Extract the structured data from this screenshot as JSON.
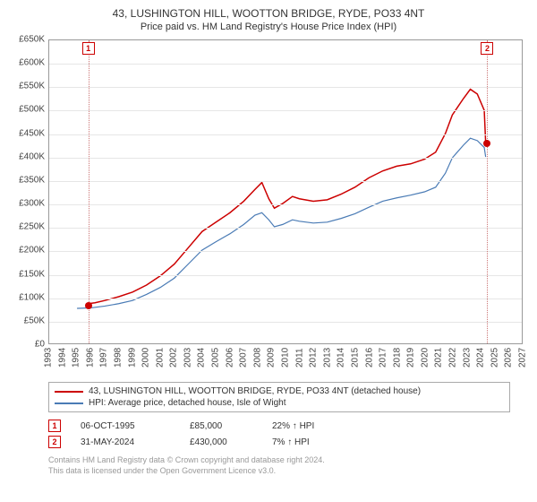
{
  "titles": {
    "main": "43, LUSHINGTON HILL, WOOTTON BRIDGE, RYDE, PO33 4NT",
    "sub": "Price paid vs. HM Land Registry's House Price Index (HPI)"
  },
  "chart": {
    "type": "line",
    "background": "#ffffff",
    "grid_color": "#e6e6e6",
    "border_color": "#999999",
    "x_axis": {
      "years": [
        1993,
        1994,
        1995,
        1996,
        1997,
        1998,
        1999,
        2000,
        2001,
        2002,
        2003,
        2004,
        2005,
        2006,
        2007,
        2008,
        2009,
        2010,
        2011,
        2012,
        2013,
        2014,
        2015,
        2016,
        2017,
        2018,
        2019,
        2020,
        2021,
        2022,
        2023,
        2024,
        2025,
        2026,
        2027
      ],
      "min": 1993,
      "max": 2027,
      "label_fontsize": 10
    },
    "y_axis": {
      "tick_labels": [
        "£0",
        "£50K",
        "£100K",
        "£150K",
        "£200K",
        "£250K",
        "£300K",
        "£350K",
        "£400K",
        "£450K",
        "£500K",
        "£550K",
        "£600K",
        "£650K"
      ],
      "tick_values": [
        0,
        50000,
        100000,
        150000,
        200000,
        250000,
        300000,
        350000,
        400000,
        450000,
        500000,
        550000,
        600000,
        650000
      ],
      "min": 0,
      "max": 650000,
      "label_fontsize": 10
    },
    "series": [
      {
        "name": "43, LUSHINGTON HILL, WOOTTON BRIDGE, RYDE, PO33 4NT (detached house)",
        "color": "#cc0000",
        "line_width": 1.5,
        "data": [
          [
            1995.8,
            85000
          ],
          [
            1996.3,
            87000
          ],
          [
            1997,
            92000
          ],
          [
            1998,
            100000
          ],
          [
            1999,
            110000
          ],
          [
            2000,
            125000
          ],
          [
            2001,
            145000
          ],
          [
            2002,
            170000
          ],
          [
            2003,
            205000
          ],
          [
            2004,
            240000
          ],
          [
            2005,
            260000
          ],
          [
            2006,
            280000
          ],
          [
            2007,
            305000
          ],
          [
            2007.8,
            330000
          ],
          [
            2008.3,
            345000
          ],
          [
            2008.8,
            310000
          ],
          [
            2009.2,
            290000
          ],
          [
            2009.8,
            300000
          ],
          [
            2010.5,
            315000
          ],
          [
            2011,
            310000
          ],
          [
            2012,
            305000
          ],
          [
            2013,
            308000
          ],
          [
            2014,
            320000
          ],
          [
            2015,
            335000
          ],
          [
            2016,
            355000
          ],
          [
            2017,
            370000
          ],
          [
            2018,
            380000
          ],
          [
            2019,
            385000
          ],
          [
            2020,
            395000
          ],
          [
            2020.8,
            410000
          ],
          [
            2021.5,
            450000
          ],
          [
            2022,
            490000
          ],
          [
            2022.8,
            525000
          ],
          [
            2023.3,
            545000
          ],
          [
            2023.8,
            535000
          ],
          [
            2024.3,
            500000
          ],
          [
            2024.4,
            430000
          ]
        ]
      },
      {
        "name": "HPI: Average price, detached house, Isle of Wight",
        "color": "#4a7bb5",
        "line_width": 1.2,
        "data": [
          [
            1995,
            75000
          ],
          [
            1996,
            76000
          ],
          [
            1997,
            80000
          ],
          [
            1998,
            85000
          ],
          [
            1999,
            92000
          ],
          [
            2000,
            105000
          ],
          [
            2001,
            120000
          ],
          [
            2002,
            140000
          ],
          [
            2003,
            170000
          ],
          [
            2004,
            200000
          ],
          [
            2005,
            218000
          ],
          [
            2006,
            235000
          ],
          [
            2007,
            255000
          ],
          [
            2007.8,
            275000
          ],
          [
            2008.3,
            280000
          ],
          [
            2008.8,
            265000
          ],
          [
            2009.2,
            250000
          ],
          [
            2009.8,
            255000
          ],
          [
            2010.5,
            265000
          ],
          [
            2011,
            262000
          ],
          [
            2012,
            258000
          ],
          [
            2013,
            260000
          ],
          [
            2014,
            268000
          ],
          [
            2015,
            278000
          ],
          [
            2016,
            292000
          ],
          [
            2017,
            305000
          ],
          [
            2018,
            312000
          ],
          [
            2019,
            318000
          ],
          [
            2020,
            325000
          ],
          [
            2020.8,
            335000
          ],
          [
            2021.5,
            365000
          ],
          [
            2022,
            398000
          ],
          [
            2022.8,
            425000
          ],
          [
            2023.3,
            440000
          ],
          [
            2023.8,
            435000
          ],
          [
            2024.3,
            420000
          ],
          [
            2024.4,
            400000
          ]
        ]
      }
    ],
    "markers": [
      {
        "id": "1",
        "x": 1995.8,
        "y": 85000,
        "box_pos": "top"
      },
      {
        "id": "2",
        "x": 2024.4,
        "y": 430000,
        "box_pos": "top"
      }
    ]
  },
  "legend": {
    "items": [
      {
        "color": "#cc0000",
        "label": "43, LUSHINGTON HILL, WOOTTON BRIDGE, RYDE, PO33 4NT (detached house)"
      },
      {
        "color": "#4a7bb5",
        "label": "HPI: Average price, detached house, Isle of Wight"
      }
    ]
  },
  "marker_table": [
    {
      "id": "1",
      "date": "06-OCT-1995",
      "price": "£85,000",
      "pct": "22% ↑ HPI"
    },
    {
      "id": "2",
      "date": "31-MAY-2024",
      "price": "£430,000",
      "pct": "7% ↑ HPI"
    }
  ],
  "footer": {
    "line1": "Contains HM Land Registry data © Crown copyright and database right 2024.",
    "line2": "This data is licensed under the Open Government Licence v3.0."
  }
}
